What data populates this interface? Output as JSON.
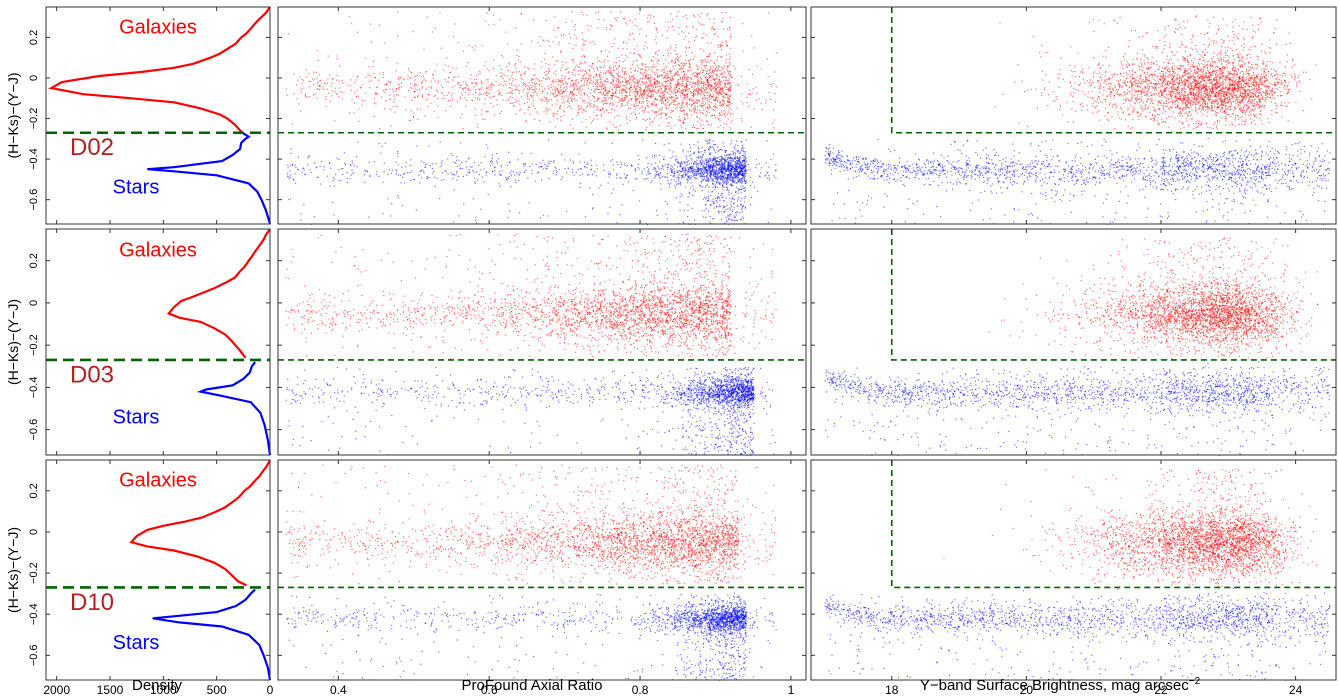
{
  "figure": {
    "x_labels": {
      "density": "Density",
      "axial": "ProFound Axial Ratio",
      "sb": "Y−band Surface Brightness, mag arcsec",
      "sb_exp": "−2"
    },
    "y_label": "(H−Ks)−(Y−J)",
    "galaxies_label": "Galaxies",
    "stars_label": "Stars"
  },
  "colors": {
    "galaxy": "#ff0000",
    "star": "#0000ff",
    "threshold": "#006400",
    "field_label": "#b22222"
  },
  "chart_data": {
    "type": "scatter",
    "y_range": [
      -0.72,
      0.35
    ],
    "y_ticks": [
      0.2,
      0,
      -0.2,
      -0.4,
      -0.6
    ],
    "y_tick_labels": [
      "0.2",
      "0",
      "−0.2",
      "−0.4",
      "−0.6"
    ],
    "separation_color": -0.27,
    "sb_cut": 18,
    "density_axis": {
      "range": [
        2100,
        0
      ],
      "ticks": [
        2000,
        1500,
        1000,
        500,
        0
      ],
      "tick_labels": [
        "2000",
        "1500",
        "1000",
        "500",
        "0"
      ]
    },
    "axial_axis": {
      "range": [
        0.32,
        1.02
      ],
      "ticks": [
        0.4,
        0.6,
        0.8,
        1
      ],
      "tick_labels": [
        "0.4",
        "0.6",
        "0.8",
        "1"
      ]
    },
    "sb_axis": {
      "range": [
        16.8,
        24.6
      ],
      "ticks": [
        18,
        20,
        22,
        24
      ],
      "tick_labels": [
        "18",
        "20",
        "22",
        "24"
      ]
    },
    "panels": [
      {
        "field": "D02",
        "galaxy_peak": {
          "color": -0.05,
          "density": 2050
        },
        "star_peak": {
          "color": -0.45,
          "density": 1150
        },
        "galaxy_axial_center": 0.92,
        "star_axial_center": 0.94,
        "galaxy_sb_center": 23.4,
        "star_locus_color": -0.45,
        "density_profile": [
          [
            0.35,
            0
          ],
          [
            0.32,
            40
          ],
          [
            0.3,
            80
          ],
          [
            0.28,
            120
          ],
          [
            0.25,
            170
          ],
          [
            0.22,
            220
          ],
          [
            0.2,
            270
          ],
          [
            0.17,
            320
          ],
          [
            0.15,
            380
          ],
          [
            0.12,
            470
          ],
          [
            0.1,
            560
          ],
          [
            0.07,
            720
          ],
          [
            0.05,
            900
          ],
          [
            0.03,
            1200
          ],
          [
            0.01,
            1600
          ],
          [
            -0.02,
            1950
          ],
          [
            -0.05,
            2050
          ],
          [
            -0.08,
            1750
          ],
          [
            -0.1,
            1300
          ],
          [
            -0.12,
            900
          ],
          [
            -0.15,
            650
          ],
          [
            -0.18,
            470
          ],
          [
            -0.2,
            400
          ],
          [
            -0.23,
            330
          ],
          [
            -0.27,
            260
          ],
          [
            -0.29,
            200
          ],
          [
            -0.3,
            230
          ],
          [
            -0.32,
            270
          ],
          [
            -0.35,
            280
          ],
          [
            -0.38,
            350
          ],
          [
            -0.41,
            450
          ],
          [
            -0.44,
            900
          ],
          [
            -0.45,
            1150
          ],
          [
            -0.46,
            900
          ],
          [
            -0.48,
            500
          ],
          [
            -0.52,
            200
          ],
          [
            -0.56,
            120
          ],
          [
            -0.6,
            80
          ],
          [
            -0.65,
            40
          ],
          [
            -0.7,
            10
          ],
          [
            -0.72,
            0
          ]
        ]
      },
      {
        "field": "D03",
        "galaxy_peak": {
          "color": -0.05,
          "density": 950
        },
        "star_peak": {
          "color": -0.42,
          "density": 650
        },
        "galaxy_axial_center": 0.92,
        "star_axial_center": 0.95,
        "galaxy_sb_center": 23.5,
        "star_locus_color": -0.42,
        "density_profile": [
          [
            0.35,
            0
          ],
          [
            0.32,
            40
          ],
          [
            0.3,
            60
          ],
          [
            0.27,
            100
          ],
          [
            0.25,
            130
          ],
          [
            0.22,
            170
          ],
          [
            0.2,
            200
          ],
          [
            0.17,
            240
          ],
          [
            0.15,
            280
          ],
          [
            0.12,
            330
          ],
          [
            0.1,
            400
          ],
          [
            0.07,
            520
          ],
          [
            0.05,
            620
          ],
          [
            0.03,
            720
          ],
          [
            0.01,
            830
          ],
          [
            -0.02,
            900
          ],
          [
            -0.05,
            950
          ],
          [
            -0.07,
            850
          ],
          [
            -0.09,
            650
          ],
          [
            -0.12,
            520
          ],
          [
            -0.15,
            420
          ],
          [
            -0.18,
            360
          ],
          [
            -0.22,
            290
          ],
          [
            -0.26,
            230
          ],
          [
            -0.28,
            140
          ],
          [
            -0.3,
            170
          ],
          [
            -0.33,
            190
          ],
          [
            -0.36,
            250
          ],
          [
            -0.39,
            350
          ],
          [
            -0.41,
            600
          ],
          [
            -0.42,
            650
          ],
          [
            -0.44,
            450
          ],
          [
            -0.47,
            180
          ],
          [
            -0.52,
            90
          ],
          [
            -0.58,
            50
          ],
          [
            -0.65,
            20
          ],
          [
            -0.72,
            0
          ]
        ]
      },
      {
        "field": "D10",
        "galaxy_peak": {
          "color": -0.05,
          "density": 1300
        },
        "star_peak": {
          "color": -0.42,
          "density": 1100
        },
        "galaxy_axial_center": 0.93,
        "star_axial_center": 0.94,
        "galaxy_sb_center": 23.5,
        "star_locus_color": -0.42,
        "density_profile": [
          [
            0.35,
            0
          ],
          [
            0.32,
            30
          ],
          [
            0.3,
            60
          ],
          [
            0.27,
            100
          ],
          [
            0.25,
            140
          ],
          [
            0.22,
            190
          ],
          [
            0.2,
            240
          ],
          [
            0.17,
            290
          ],
          [
            0.15,
            340
          ],
          [
            0.12,
            420
          ],
          [
            0.1,
            500
          ],
          [
            0.07,
            640
          ],
          [
            0.05,
            800
          ],
          [
            0.03,
            1000
          ],
          [
            0.01,
            1150
          ],
          [
            -0.02,
            1250
          ],
          [
            -0.05,
            1300
          ],
          [
            -0.07,
            1150
          ],
          [
            -0.09,
            900
          ],
          [
            -0.12,
            680
          ],
          [
            -0.15,
            520
          ],
          [
            -0.18,
            420
          ],
          [
            -0.21,
            360
          ],
          [
            -0.24,
            300
          ],
          [
            -0.26,
            220
          ],
          [
            -0.28,
            140
          ],
          [
            -0.3,
            180
          ],
          [
            -0.33,
            230
          ],
          [
            -0.36,
            320
          ],
          [
            -0.39,
            500
          ],
          [
            -0.41,
            900
          ],
          [
            -0.42,
            1100
          ],
          [
            -0.44,
            850
          ],
          [
            -0.46,
            450
          ],
          [
            -0.5,
            200
          ],
          [
            -0.55,
            100
          ],
          [
            -0.6,
            60
          ],
          [
            -0.66,
            20
          ],
          [
            -0.72,
            0
          ]
        ]
      }
    ]
  }
}
